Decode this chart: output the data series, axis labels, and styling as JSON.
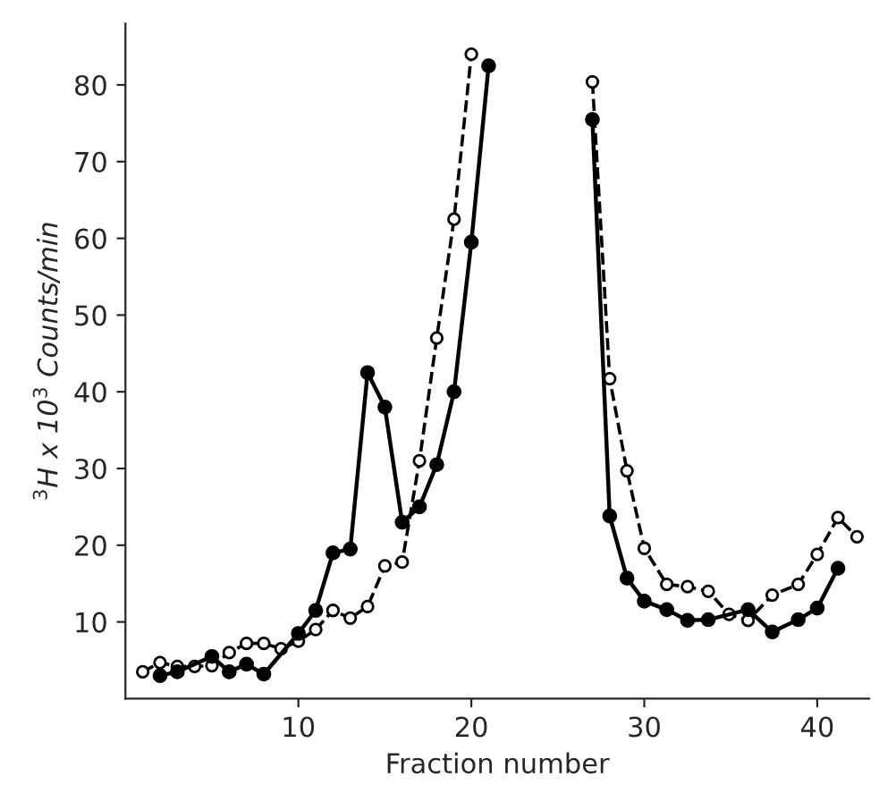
{
  "chart_data": {
    "type": "line",
    "xlabel": "Fraction number",
    "ylabel": "$^{3}$H x 10$^{3}$ Counts/min",
    "xlim": [
      0,
      43
    ],
    "xticks": [
      10,
      20,
      30,
      40
    ],
    "ylim": [
      0,
      88
    ],
    "yticks": [
      10,
      20,
      30,
      40,
      50,
      60,
      70,
      80
    ],
    "grid": false,
    "marker": "circle",
    "series": [
      {
        "color": "#000000",
        "line_style": "solid",
        "x": [
          2,
          3,
          5,
          6,
          7,
          8,
          10,
          11,
          12,
          13,
          14,
          15,
          16,
          17,
          18,
          19,
          20,
          21,
          24,
          27,
          28,
          29,
          30,
          31.3,
          32.5,
          33.7,
          36,
          37.4,
          38.9,
          40,
          41.2
        ],
        "values": [
          3.0,
          3.5,
          5.5,
          3.5,
          4.5,
          3.2,
          8.5,
          11.5,
          19,
          19.5,
          42.5,
          38,
          23,
          25,
          30.5,
          40,
          59.5,
          82.5,
          null,
          75.5,
          23.8,
          15.7,
          12.7,
          11.6,
          10.2,
          10.3,
          11.6,
          8.7,
          10.3,
          11.8,
          17
        ]
      },
      {
        "color": "#000000",
        "line_style": "dashed",
        "x": [
          1,
          2,
          3,
          4,
          5,
          6,
          7,
          8,
          9,
          10,
          11,
          12,
          13,
          14,
          15,
          16,
          17,
          18,
          19,
          20,
          24,
          27,
          28,
          29,
          30,
          31.3,
          32.5,
          33.7,
          34.9,
          36,
          37.4,
          38.9,
          40,
          41.2,
          42.3
        ],
        "values": [
          3.5,
          4.7,
          4.2,
          4.2,
          4.3,
          6.0,
          7.2,
          7.2,
          6.5,
          7.5,
          9.0,
          11.5,
          10.5,
          12.0,
          17.3,
          17.8,
          31,
          47,
          62.5,
          84,
          null,
          80.4,
          41.7,
          29.7,
          19.6,
          14.9,
          14.6,
          14.0,
          11.0,
          10.2,
          13.5,
          14.9,
          18.8,
          23.6,
          21.1
        ]
      }
    ]
  }
}
